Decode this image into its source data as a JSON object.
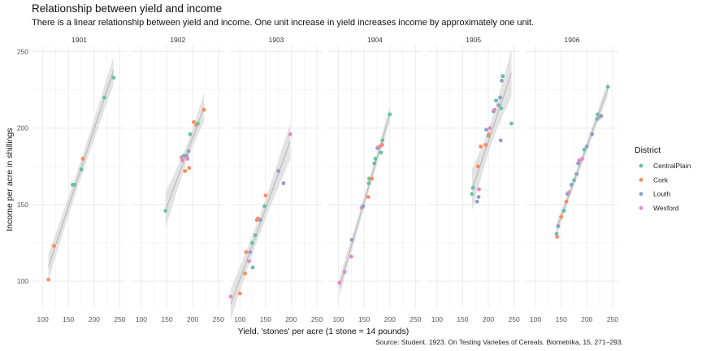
{
  "title": "Relationship between yield and income",
  "subtitle": "There is a linear relationship between yield and income. One unit increase in yield increases income by approximately one unit.",
  "caption": "Source: Student. 1923. On Testing Varieties of Cereals. Biometrika, 15, 271–293.",
  "chart_data": {
    "type": "scatter",
    "facet_by": "year",
    "xlabel": "Yield, 'stones' per acre (1 stone = 14 pounds)",
    "ylabel": "Income per acre in shillings",
    "xlim": [
      80,
      262
    ],
    "ylim": [
      82,
      254
    ],
    "xticks": [
      100,
      150,
      200,
      250
    ],
    "yticks": [
      100,
      150,
      200,
      250
    ],
    "grid": true,
    "legend": {
      "title": "District",
      "position": "right"
    },
    "districts": [
      {
        "name": "CentralPlain",
        "color": "#66c2a5"
      },
      {
        "name": "Cork",
        "color": "#fc8d62"
      },
      {
        "name": "Louth",
        "color": "#8da0cb"
      },
      {
        "name": "Wexford",
        "color": "#e78ac3"
      }
    ],
    "smooth": {
      "method": "loess",
      "color": "#b3b3b3",
      "band_color": "#d9d9d9"
    },
    "facets": [
      {
        "label": "1901",
        "points": [
          {
            "x": 111,
            "y": 101,
            "d": "Cork"
          },
          {
            "x": 122,
            "y": 123,
            "d": "Cork"
          },
          {
            "x": 158,
            "y": 163,
            "d": "CentralPlain"
          },
          {
            "x": 162,
            "y": 163,
            "d": "CentralPlain"
          },
          {
            "x": 175,
            "y": 173,
            "d": "CentralPlain"
          },
          {
            "x": 178,
            "y": 180,
            "d": "Cork"
          },
          {
            "x": 220,
            "y": 220,
            "d": "CentralPlain"
          },
          {
            "x": 238,
            "y": 233,
            "d": "CentralPlain"
          }
        ]
      },
      {
        "label": "1902",
        "points": [
          {
            "x": 147,
            "y": 146,
            "d": "CentralPlain"
          },
          {
            "x": 178,
            "y": 181,
            "d": "Wexford"
          },
          {
            "x": 180,
            "y": 179,
            "d": "Wexford"
          },
          {
            "x": 183,
            "y": 182,
            "d": "CentralPlain"
          },
          {
            "x": 185,
            "y": 172,
            "d": "Cork"
          },
          {
            "x": 188,
            "y": 182,
            "d": "Louth"
          },
          {
            "x": 190,
            "y": 180,
            "d": "Wexford"
          },
          {
            "x": 192,
            "y": 185,
            "d": "Louth"
          },
          {
            "x": 193,
            "y": 174,
            "d": "Cork"
          },
          {
            "x": 195,
            "y": 196,
            "d": "CentralPlain"
          },
          {
            "x": 202,
            "y": 204,
            "d": "Cork"
          },
          {
            "x": 207,
            "y": 202,
            "d": "Cork"
          },
          {
            "x": 210,
            "y": 203,
            "d": "CentralPlain"
          },
          {
            "x": 222,
            "y": 212,
            "d": "Cork"
          }
        ]
      },
      {
        "label": "1903",
        "points": [
          {
            "x": 82,
            "y": 90,
            "d": "Wexford"
          },
          {
            "x": 100,
            "y": 92,
            "d": "Cork"
          },
          {
            "x": 110,
            "y": 105,
            "d": "Cork"
          },
          {
            "x": 112,
            "y": 119,
            "d": "Cork"
          },
          {
            "x": 118,
            "y": 113,
            "d": "Wexford"
          },
          {
            "x": 120,
            "y": 119,
            "d": "Louth"
          },
          {
            "x": 124,
            "y": 125,
            "d": "CentralPlain"
          },
          {
            "x": 125,
            "y": 109,
            "d": "CentralPlain"
          },
          {
            "x": 130,
            "y": 130,
            "d": "CentralPlain"
          },
          {
            "x": 133,
            "y": 140,
            "d": "Cork"
          },
          {
            "x": 135,
            "y": 141,
            "d": "Cork"
          },
          {
            "x": 140,
            "y": 140,
            "d": "Louth"
          },
          {
            "x": 148,
            "y": 149,
            "d": "CentralPlain"
          },
          {
            "x": 150,
            "y": 156,
            "d": "Cork"
          },
          {
            "x": 175,
            "y": 172,
            "d": "Louth"
          },
          {
            "x": 185,
            "y": 164,
            "d": "Louth"
          },
          {
            "x": 198,
            "y": 196,
            "d": "Wexford"
          }
        ]
      },
      {
        "label": "1904",
        "points": [
          {
            "x": 102,
            "y": 99,
            "d": "Wexford"
          },
          {
            "x": 112,
            "y": 106,
            "d": "Wexford"
          },
          {
            "x": 125,
            "y": 116,
            "d": "Wexford"
          },
          {
            "x": 126,
            "y": 127,
            "d": "Louth"
          },
          {
            "x": 145,
            "y": 148,
            "d": "Wexford"
          },
          {
            "x": 148,
            "y": 149,
            "d": "Louth"
          },
          {
            "x": 158,
            "y": 155,
            "d": "Cork"
          },
          {
            "x": 159,
            "y": 164,
            "d": "CentralPlain"
          },
          {
            "x": 160,
            "y": 167,
            "d": "CentralPlain"
          },
          {
            "x": 165,
            "y": 167,
            "d": "Cork"
          },
          {
            "x": 170,
            "y": 177,
            "d": "CentralPlain"
          },
          {
            "x": 172,
            "y": 180,
            "d": "CentralPlain"
          },
          {
            "x": 176,
            "y": 187,
            "d": "Louth"
          },
          {
            "x": 180,
            "y": 188,
            "d": "Wexford"
          },
          {
            "x": 183,
            "y": 184,
            "d": "CentralPlain"
          },
          {
            "x": 185,
            "y": 189,
            "d": "Cork"
          },
          {
            "x": 186,
            "y": 192,
            "d": "CentralPlain"
          },
          {
            "x": 200,
            "y": 209,
            "d": "CentralPlain"
          }
        ]
      },
      {
        "label": "1905",
        "points": [
          {
            "x": 168,
            "y": 157,
            "d": "CentralPlain"
          },
          {
            "x": 170,
            "y": 161,
            "d": "CentralPlain"
          },
          {
            "x": 178,
            "y": 152,
            "d": "Louth"
          },
          {
            "x": 180,
            "y": 175,
            "d": "Cork"
          },
          {
            "x": 181,
            "y": 155,
            "d": "Louth"
          },
          {
            "x": 182,
            "y": 160,
            "d": "Wexford"
          },
          {
            "x": 185,
            "y": 188,
            "d": "Cork"
          },
          {
            "x": 195,
            "y": 189,
            "d": "Cork"
          },
          {
            "x": 196,
            "y": 199,
            "d": "Louth"
          },
          {
            "x": 200,
            "y": 195,
            "d": "CentralPlain"
          },
          {
            "x": 201,
            "y": 196,
            "d": "Cork"
          },
          {
            "x": 203,
            "y": 200,
            "d": "Wexford"
          },
          {
            "x": 210,
            "y": 211,
            "d": "Louth"
          },
          {
            "x": 212,
            "y": 212,
            "d": "Wexford"
          },
          {
            "x": 215,
            "y": 218,
            "d": "CentralPlain"
          },
          {
            "x": 220,
            "y": 215,
            "d": "Louth"
          },
          {
            "x": 223,
            "y": 220,
            "d": "Louth"
          },
          {
            "x": 225,
            "y": 213,
            "d": "CentralPlain"
          },
          {
            "x": 226,
            "y": 231,
            "d": "Louth"
          },
          {
            "x": 228,
            "y": 234,
            "d": "CentralPlain"
          },
          {
            "x": 224,
            "y": 192,
            "d": "Louth"
          },
          {
            "x": 245,
            "y": 203,
            "d": "CentralPlain"
          }
        ]
      },
      {
        "label": "1906",
        "points": [
          {
            "x": 141,
            "y": 131,
            "d": "CentralPlain"
          },
          {
            "x": 142,
            "y": 129,
            "d": "Cork"
          },
          {
            "x": 144,
            "y": 136,
            "d": "Louth"
          },
          {
            "x": 150,
            "y": 142,
            "d": "Cork"
          },
          {
            "x": 155,
            "y": 146,
            "d": "CentralPlain"
          },
          {
            "x": 160,
            "y": 152,
            "d": "Cork"
          },
          {
            "x": 162,
            "y": 157,
            "d": "Louth"
          },
          {
            "x": 165,
            "y": 158,
            "d": "Wexford"
          },
          {
            "x": 170,
            "y": 163,
            "d": "Louth"
          },
          {
            "x": 175,
            "y": 166,
            "d": "CentralPlain"
          },
          {
            "x": 180,
            "y": 170,
            "d": "Louth"
          },
          {
            "x": 183,
            "y": 177,
            "d": "Louth"
          },
          {
            "x": 185,
            "y": 179,
            "d": "Wexford"
          },
          {
            "x": 191,
            "y": 180,
            "d": "Wexford"
          },
          {
            "x": 195,
            "y": 186,
            "d": "CentralPlain"
          },
          {
            "x": 200,
            "y": 188,
            "d": "Louth"
          },
          {
            "x": 210,
            "y": 196,
            "d": "Louth"
          },
          {
            "x": 220,
            "y": 206,
            "d": "CentralPlain"
          },
          {
            "x": 221,
            "y": 209,
            "d": "CentralPlain"
          },
          {
            "x": 224,
            "y": 207,
            "d": "Wexford"
          },
          {
            "x": 228,
            "y": 208,
            "d": "Louth"
          },
          {
            "x": 241,
            "y": 227,
            "d": "CentralPlain"
          }
        ]
      }
    ]
  }
}
